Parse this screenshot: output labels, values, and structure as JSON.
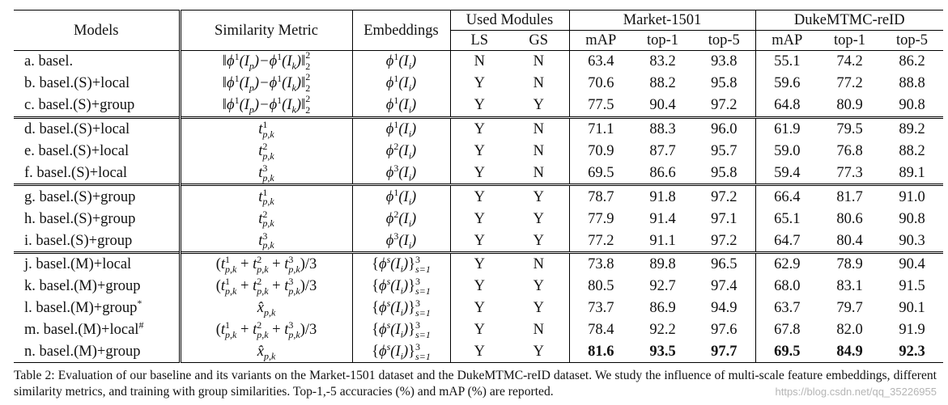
{
  "header": {
    "models": "Models",
    "similarity_metric": "Similarity Metric",
    "embeddings": "Embeddings",
    "used_modules": "Used Modules",
    "ls": "LS",
    "gs": "GS",
    "market": "Market-1501",
    "duke": "DukeMTMC-reID",
    "map": "mAP",
    "top1": "top-1",
    "top5": "top-5"
  },
  "rows": [
    {
      "model": "a. basel.",
      "metric": "norm",
      "emb": "phi1",
      "ls": "N",
      "gs": "N",
      "m_map": "63.4",
      "m_top1": "83.2",
      "m_top5": "93.8",
      "d_map": "55.1",
      "d_top1": "74.2",
      "d_top5": "86.2"
    },
    {
      "model": "b. basel.(S)+local",
      "metric": "norm",
      "emb": "phi1",
      "ls": "Y",
      "gs": "N",
      "m_map": "70.6",
      "m_top1": "88.2",
      "m_top5": "95.8",
      "d_map": "59.6",
      "d_top1": "77.2",
      "d_top5": "88.8"
    },
    {
      "model": "c. basel.(S)+group",
      "metric": "norm",
      "emb": "phi1",
      "ls": "Y",
      "gs": "Y",
      "m_map": "77.5",
      "m_top1": "90.4",
      "m_top5": "97.2",
      "d_map": "64.8",
      "d_top1": "80.9",
      "d_top5": "90.8"
    },
    {
      "model": "d. basel.(S)+local",
      "metric": "t1",
      "emb": "phi1",
      "ls": "Y",
      "gs": "N",
      "m_map": "71.1",
      "m_top1": "88.3",
      "m_top5": "96.0",
      "d_map": "61.9",
      "d_top1": "79.5",
      "d_top5": "89.2"
    },
    {
      "model": "e. basel.(S)+local",
      "metric": "t2",
      "emb": "phi2",
      "ls": "Y",
      "gs": "N",
      "m_map": "70.9",
      "m_top1": "87.7",
      "m_top5": "95.7",
      "d_map": "59.0",
      "d_top1": "76.8",
      "d_top5": "88.2"
    },
    {
      "model": "f. basel.(S)+local",
      "metric": "t3",
      "emb": "phi3",
      "ls": "Y",
      "gs": "N",
      "m_map": "69.5",
      "m_top1": "86.6",
      "m_top5": "95.8",
      "d_map": "59.4",
      "d_top1": "77.3",
      "d_top5": "89.1"
    },
    {
      "model": "g. basel.(S)+group",
      "metric": "t1",
      "emb": "phi1",
      "ls": "Y",
      "gs": "Y",
      "m_map": "78.7",
      "m_top1": "91.8",
      "m_top5": "97.2",
      "d_map": "66.4",
      "d_top1": "81.7",
      "d_top5": "91.0"
    },
    {
      "model": "h. basel.(S)+group",
      "metric": "t2",
      "emb": "phi2",
      "ls": "Y",
      "gs": "Y",
      "m_map": "77.9",
      "m_top1": "91.4",
      "m_top5": "97.1",
      "d_map": "65.1",
      "d_top1": "80.6",
      "d_top5": "90.8"
    },
    {
      "model": "i. basel.(S)+group",
      "metric": "t3",
      "emb": "phi3",
      "ls": "Y",
      "gs": "Y",
      "m_map": "77.2",
      "m_top1": "91.1",
      "m_top5": "97.2",
      "d_map": "64.7",
      "d_top1": "80.4",
      "d_top5": "90.3"
    },
    {
      "model": "j. basel.(M)+local",
      "metric": "sum",
      "emb": "set",
      "ls": "Y",
      "gs": "N",
      "m_map": "73.8",
      "m_top1": "89.8",
      "m_top5": "96.5",
      "d_map": "62.9",
      "d_top1": "78.9",
      "d_top5": "90.4"
    },
    {
      "model": "k. basel.(M)+group",
      "metric": "sum",
      "emb": "set",
      "ls": "Y",
      "gs": "Y",
      "m_map": "80.5",
      "m_top1": "92.7",
      "m_top5": "97.4",
      "d_map": "68.0",
      "d_top1": "83.1",
      "d_top5": "91.5"
    },
    {
      "model": "l. basel.(M)+group*",
      "metric": "xhat",
      "emb": "set",
      "ls": "Y",
      "gs": "Y",
      "m_map": "73.7",
      "m_top1": "86.9",
      "m_top5": "94.9",
      "d_map": "63.7",
      "d_top1": "79.7",
      "d_top5": "90.1"
    },
    {
      "model": "m. basel.(M)+local#",
      "metric": "sum",
      "emb": "set",
      "ls": "Y",
      "gs": "N",
      "m_map": "78.4",
      "m_top1": "92.2",
      "m_top5": "97.6",
      "d_map": "67.8",
      "d_top1": "82.0",
      "d_top5": "91.9"
    },
    {
      "model": "n. basel.(M)+group",
      "metric": "xhat",
      "emb": "set",
      "ls": "Y",
      "gs": "Y",
      "m_map": "81.6",
      "m_top1": "93.5",
      "m_top5": "97.7",
      "d_map": "69.5",
      "d_top1": "84.9",
      "d_top5": "92.3",
      "bold": true
    }
  ],
  "caption": "Table 2: Evaluation of our baseline and its variants on the Market-1501 dataset and the DukeMTMC-reID dataset. We study the influence of multi-scale feature embeddings, different similarity metrics, and training with group similarities. Top-1,-5 accuracies (%) and mAP (%) are reported.",
  "watermark": "https://blog.csdn.net/qq_35226955"
}
